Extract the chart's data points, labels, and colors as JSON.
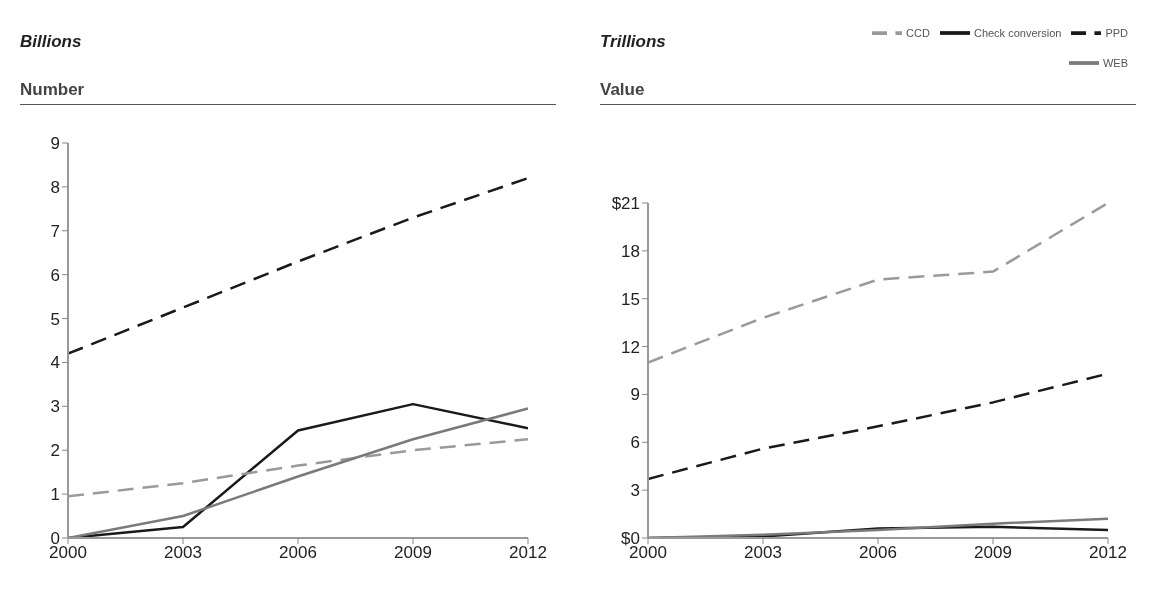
{
  "chart_data": [
    {
      "type": "line",
      "title": "Billions",
      "subtitle": "Number",
      "x": [
        2000,
        2003,
        2006,
        2009,
        2012
      ],
      "xlim": [
        2000,
        2012
      ],
      "xticks": [
        2000,
        2003,
        2006,
        2009,
        2012
      ],
      "ylim": [
        0,
        9
      ],
      "yticks": [
        0,
        1,
        2,
        3,
        4,
        5,
        6,
        7,
        8,
        9
      ],
      "grid": false,
      "legend": false,
      "marker": "none",
      "series": [
        {
          "color": "#1a1a1a",
          "line_style": "solid",
          "values": [
            0,
            0.25,
            2.45,
            3.05,
            2.5
          ]
        },
        {
          "color": "#9a9a9a",
          "line_style": "dashed",
          "values": [
            0.95,
            1.25,
            1.65,
            2.0,
            2.25
          ]
        },
        {
          "color": "#1a1a1a",
          "line_style": "dashed",
          "values": [
            4.2,
            5.25,
            6.3,
            7.3,
            8.2
          ]
        },
        {
          "color": "#7a7a7a",
          "line_style": "solid",
          "values": [
            0,
            0.5,
            1.4,
            2.25,
            2.95
          ]
        }
      ]
    },
    {
      "type": "line",
      "title": "Trillions",
      "subtitle": "Value",
      "x": [
        2000,
        2003,
        2006,
        2009,
        2012
      ],
      "xlim": [
        2000,
        2012
      ],
      "xticks": [
        2000,
        2003,
        2006,
        2009,
        2012
      ],
      "ylim": [
        0,
        21
      ],
      "yticks": [
        {
          "value": 0,
          "label": "$0"
        },
        3,
        6,
        9,
        12,
        15,
        18,
        {
          "value": 21,
          "label": "$21"
        }
      ],
      "grid": false,
      "legend": "top right",
      "marker": "none",
      "series": [
        {
          "name": "Check conversion",
          "color": "#1a1a1a",
          "line_style": "solid",
          "values": [
            0,
            0.1,
            0.6,
            0.7,
            0.5
          ]
        },
        {
          "name": "CCD",
          "color": "#9a9a9a",
          "line_style": "dashed",
          "values": [
            11.0,
            13.8,
            16.2,
            16.7,
            21.0
          ]
        },
        {
          "name": "PPD",
          "color": "#1a1a1a",
          "line_style": "dashed",
          "values": [
            3.7,
            5.6,
            7.0,
            8.5,
            10.3
          ]
        },
        {
          "name": "WEB",
          "color": "#7a7a7a",
          "line_style": "solid",
          "values": [
            0,
            0.2,
            0.5,
            0.9,
            1.2
          ]
        }
      ]
    }
  ]
}
